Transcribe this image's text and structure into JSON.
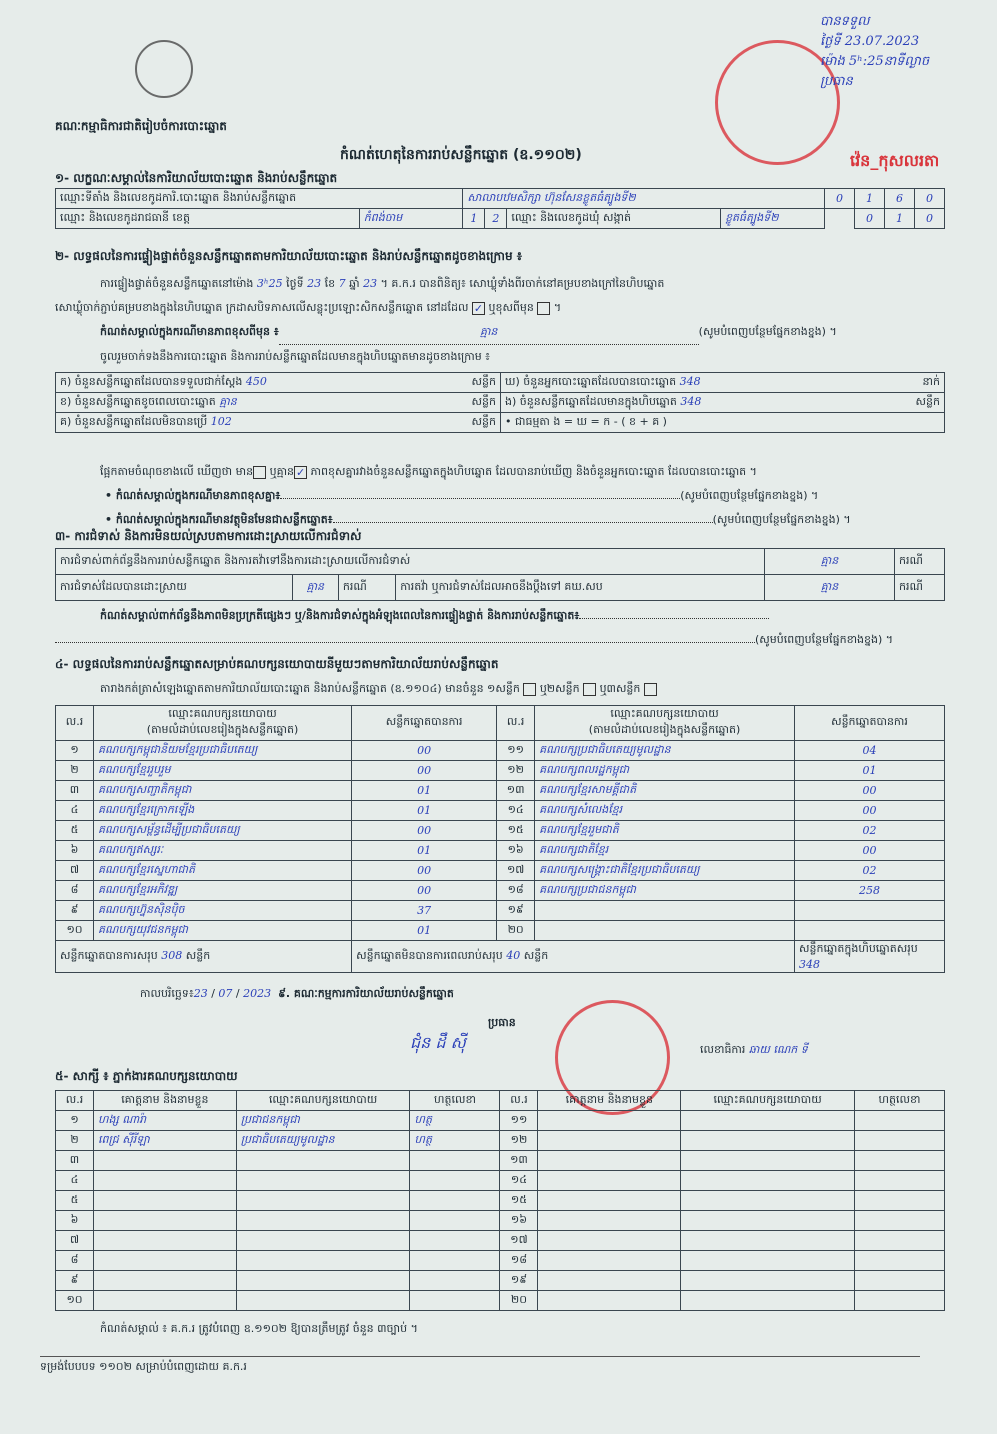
{
  "header": {
    "authority": "គណៈកម្មាធិការជាតិរៀបចំការបោះឆ្នោត",
    "title": "កំណត់ហេតុនៃការរាប់សន្លឹកឆ្នោត (ឧ.១១០២)"
  },
  "receipt": {
    "label": "បានទទួល",
    "date": "ថ្ងៃទី 23.07.2023",
    "time": "ម៉ោង 5ʰ:25នាទីល្ងាច",
    "signer": "ប្រធាន",
    "office": "វ៉េន_កុសលរតា"
  },
  "section1": {
    "title": "១- លក្ខណៈសម្គាល់នៃការិយាល័យបោះឆ្នោត និងរាប់សន្លឹកឆ្នោត",
    "row1_label": "ឈ្មោះទីតាំង និងលេខកូដការិ.បោះឆ្នោត និងរាប់សន្លឹកឆ្នោត",
    "station_name": "សាលាបឋមសិក្សា ហ៊ុនសែនខ្លូតធំត្បូងទី២",
    "station_code": [
      "0",
      "1",
      "6",
      "0"
    ],
    "row2_label": "ឈ្មោះ និងលេខកូដរាជធានី ខេត្ត",
    "province": "កំពង់ចាម",
    "province_code": [
      "1",
      "2"
    ],
    "commune_label": "ឈ្មោះ និងលេខកូដឃុំ សង្កាត់",
    "commune": "ខ្លូតធំត្បូងទី២",
    "commune_code": [
      "0",
      "1",
      "0"
    ]
  },
  "section2": {
    "title": "២- លទ្ធផលនៃការផ្ទៀងផ្ទាត់ចំនួនសន្លឹកឆ្នោតតាមការិយាល័យបោះឆ្នោត និងរាប់សន្លឹកឆ្នោតដូចខាងក្រោម ៖",
    "line1a": "ការផ្ទៀងផ្ទាត់ចំនួនសន្លឹកឆ្នោតនៅម៉ោង",
    "time": "3ʰ25",
    "day_label": "ថ្ងៃទី",
    "day": "23",
    "month_label": "ខែ",
    "month": "7",
    "year_label": "ឆ្នាំ",
    "year": "23",
    "line1b": "។ គ.ក.រ បានពិនិត្យ៖ សោឃ្លុំទាំងពីរចាក់នៅគម្របខាងក្រៅនៃហិបឆ្នោត",
    "line2": "សោឃ្លុំចាក់ភ្ជាប់គម្របខាងក្នុងនៃហិបឆ្នោត ក្រដាសបិទភាសលើសន្លុះប្រឡោះសិកសន្លឹកឆ្នោត នៅដដែល",
    "intact_checked": "✓",
    "changed_label": "ឬខុសពីមុន",
    "end": "។",
    "note1_label": "កំណត់សម្គាល់ក្នុងករណីមានភាពខុសពីមុន ៖",
    "note1_value": "គ្មាន",
    "fill_more": "(សូមបំពេញបន្ថែមផ្នែកខាងខ្នង) ។",
    "intro": "ចូលរួមចាក់ទងនឹងការបោះឆ្នោត និងការរាប់សន្លឹកឆ្នោតដែលមានក្នុងហិបឆ្នោតមានដូចខាងក្រោម ៖",
    "rows": [
      {
        "l": "ក) ចំនួនសន្លឹកឆ្នោតដែលបានទទួលជាក់ស្តែង",
        "v": "450",
        "u": "សន្លឹក",
        "l2": "ឃ) ចំនួនអ្នកបោះឆ្នោតដែលបានបោះឆ្នោត",
        "v2": "348",
        "u2": "នាក់"
      },
      {
        "l": "ខ) ចំនួនសន្លឹកឆ្នោតខូចពេលបោះឆ្នោត",
        "v": "គ្មាន",
        "u": "សន្លឹក",
        "l2": "ង) ចំនួនសន្លឹកឆ្នោតដែលមានក្នុងហិបឆ្នោត",
        "v2": "348",
        "u2": "សន្លឹក"
      },
      {
        "l": "គ) ចំនួនសន្លឹកឆ្នោតដែលមិនបានប្រើ",
        "v": "102",
        "u": "សន្លឹក",
        "l2": "•  ជាធម្មតា ង = ឃ = ក - ( ខ + គ )",
        "v2": "",
        "u2": ""
      }
    ],
    "check_line_a": "ផ្អែកតាមចំណុចខាងលើ ឃើញថា មាន",
    "check_line_b": "ឬគ្មាន",
    "no_checked": "✓",
    "check_line_c": "ភាពខុសគ្នារវាងចំនួនសន្លឹកឆ្នោតក្នុងហិបឆ្នោត ដែលបានរាប់ឃើញ និងចំនួនអ្នកបោះឆ្នោត ដែលបានបោះឆ្នោត ។",
    "note2": "• កំណត់សម្គាល់ក្នុងករណីមានភាពខុសគ្នា៖",
    "note3": "• កំណត់សម្គាល់ក្នុងករណីមានវត្ថុមិនមែនជាសន្លឹកឆ្នោត៖"
  },
  "section3": {
    "title": "៣- ការជំទាស់ និងការមិនយល់ស្របតាមការដោះស្រាយលើការជំទាស់",
    "r1": "ការជំទាស់ពាក់ព័ន្ធនឹងការរាប់សន្លឹកឆ្នោត និងការតវ៉ាទៅនឹងការដោះស្រាយលើការជំទាស់",
    "r1v": "គ្មាន",
    "unit": "ករណី",
    "r2": "ការជំទាស់ដែលបានដោះស្រាយ",
    "r2v": "គ្មាន",
    "r3": "ការតវ៉ា ឬការជំទាស់ដែលអាចនឹងប្តឹងទៅ គឃ.សប",
    "r3v": "គ្មាន",
    "note": "កំណត់សម្គាល់ពាក់ព័ន្ធនឹងភាពមិនប្រក្រតីផ្សេងៗ ឬ/និងការជំទាស់ក្នុងអំឡុងពេលនៃការផ្ទៀងផ្ទាត់ និងការរាប់សន្លឹកឆ្នោត៖"
  },
  "section4": {
    "title": "៤- លទ្ធផលនៃការរាប់សន្លឹកឆ្នោតសម្រាប់គណបក្សនយោបាយនីមួយៗតាមការិយាល័យរាប់សន្លឹកឆ្នោត",
    "sub": "តារាងកត់ត្រាសំឡេងឆ្នោតតាមការិយាល័យបោះឆ្នោត និងរាប់សន្លឹកឆ្នោត (ឧ.១១០៤) មានចំនួន ១សន្លឹក",
    "opt2": "ឬ២សន្លឹក",
    "opt3": "ឬ៣សន្លឹក",
    "h_no": "ល.រ",
    "h_party": "ឈ្មោះគណបក្សនយោបាយ",
    "h_party2": "(តាមលំដាប់លេខរៀងក្នុងសន្លឹកឆ្នោត)",
    "h_votes": "សន្លឹកឆ្នោតបានការ",
    "parties": [
      {
        "n": "១",
        "name": "គណបក្សកម្ពុជានិយមខ្មែរប្រជាធិបតេយ្យ",
        "v": "00"
      },
      {
        "n": "២",
        "name": "គណបក្សខ្មែររួបរួម",
        "v": "00"
      },
      {
        "n": "៣",
        "name": "គណបក្សសញ្ជាតិកម្ពុជា",
        "v": "01"
      },
      {
        "n": "៤",
        "name": "គណបក្សខ្មែរក្រោកឡើង",
        "v": "01"
      },
      {
        "n": "៥",
        "name": "គណបក្សសម្ព័ន្ធដើម្បីប្រជាធិបតេយ្យ",
        "v": "00"
      },
      {
        "n": "៦",
        "name": "គណបក្សឥស្សរៈ",
        "v": "01"
      },
      {
        "n": "៧",
        "name": "គណបក្សខ្មែរស្នេហាជាតិ",
        "v": "00"
      },
      {
        "n": "៨",
        "name": "គណបក្សខ្មែរអភិវឌ្ឍ",
        "v": "00"
      },
      {
        "n": "៩",
        "name": "គណបក្សហ្វ៊ុនស៊ិនប៉ិច",
        "v": "37"
      },
      {
        "n": "១០",
        "name": "គណបក្សយុវជនកម្ពុជា",
        "v": "01"
      },
      {
        "n": "១១",
        "name": "គណបក្សប្រជាធិបតេយ្យមូលដ្ឋាន",
        "v": "04"
      },
      {
        "n": "១២",
        "name": "គណបក្សពលរដ្ឋកម្ពុជា",
        "v": "01"
      },
      {
        "n": "១៣",
        "name": "គណបក្សខ្មែរសាមគ្គីជាតិ",
        "v": "00"
      },
      {
        "n": "១៤",
        "name": "គណបក្សសំលេងខ្មែរ",
        "v": "00"
      },
      {
        "n": "១៥",
        "name": "គណបក្សខ្មែររួមជាតិ",
        "v": "02"
      },
      {
        "n": "១៦",
        "name": "គណបក្សជាតិខ្មែរ",
        "v": "00"
      },
      {
        "n": "១៧",
        "name": "គណបក្សសង្គ្រោះជាតិខ្មែរប្រជាធិបតេយ្យ",
        "v": "02"
      },
      {
        "n": "១៨",
        "name": "គណបក្សប្រជាជនកម្ពុជា",
        "v": "258"
      },
      {
        "n": "១៩",
        "name": "",
        "v": ""
      },
      {
        "n": "២០",
        "name": "",
        "v": ""
      }
    ],
    "valid_label": "សន្លឹកឆ្នោតបានការសរុប",
    "valid": "308",
    "invalid_label": "សន្លឹកឆ្នោតមិនបានការពេលរាប់សរុប",
    "invalid": "40",
    "total_label": "សន្លឹកឆ្នោតក្នុងហិបឆ្នោតសរុប",
    "total": "348",
    "unit": "សន្លឹក",
    "date_label": "កាលបរិច្ឆេទ៖",
    "date_d": "23",
    "date_m": "07",
    "date_y": "2023",
    "committee": "៩. គណៈកម្មការការិយាល័យរាប់សន្លឹកឆ្នោត",
    "chair_label": "ប្រធាន",
    "chair_sig": "ជុំន ដឹ ស៊ី",
    "secretary_label": "លេខាធិការ",
    "secretary_sig": "ឆាយ ណេក ទី"
  },
  "section5": {
    "title": "៥- សាក្សី ៖ ភ្នាក់ងារគណបក្សនយោបាយ",
    "h_no": "ល.រ",
    "h_name": "គោត្តនាម និងនាមខ្លួន",
    "h_party": "ឈ្មោះគណបក្សនយោបាយ",
    "h_sig": "ហត្ថលេខា",
    "left": [
      {
        "n": "១",
        "name": "ហង្ស ណារ៉ា",
        "party": "ប្រជាជនកម្ពុជា",
        "sig": "ហត្ថ"
      },
      {
        "n": "២",
        "name": "ពេជ្រ ស៊ីរីឡា",
        "party": "ប្រជាធិបតេយ្យមូលដ្ឋាន",
        "sig": "ហត្ថ"
      },
      {
        "n": "៣"
      },
      {
        "n": "៤"
      },
      {
        "n": "៥"
      },
      {
        "n": "៦"
      },
      {
        "n": "៧"
      },
      {
        "n": "៨"
      },
      {
        "n": "៩"
      },
      {
        "n": "១០"
      }
    ],
    "right": [
      {
        "n": "១១"
      },
      {
        "n": "១២"
      },
      {
        "n": "១៣"
      },
      {
        "n": "១៤"
      },
      {
        "n": "១៥"
      },
      {
        "n": "១៦"
      },
      {
        "n": "១៧"
      },
      {
        "n": "១៨"
      },
      {
        "n": "១៩"
      },
      {
        "n": "២០"
      }
    ],
    "note": "កំណត់សម្គាល់ ៖ គ.ក.រ ត្រូវបំពេញ ឧ.១១០២ ឱ្យបានត្រឹមត្រូវ ចំនួន ៣ច្បាប់ ។"
  },
  "footer": "ទម្រង់បែបបទ ១១០២ សម្រាប់បំពេញដោយ គ.ក.រ"
}
